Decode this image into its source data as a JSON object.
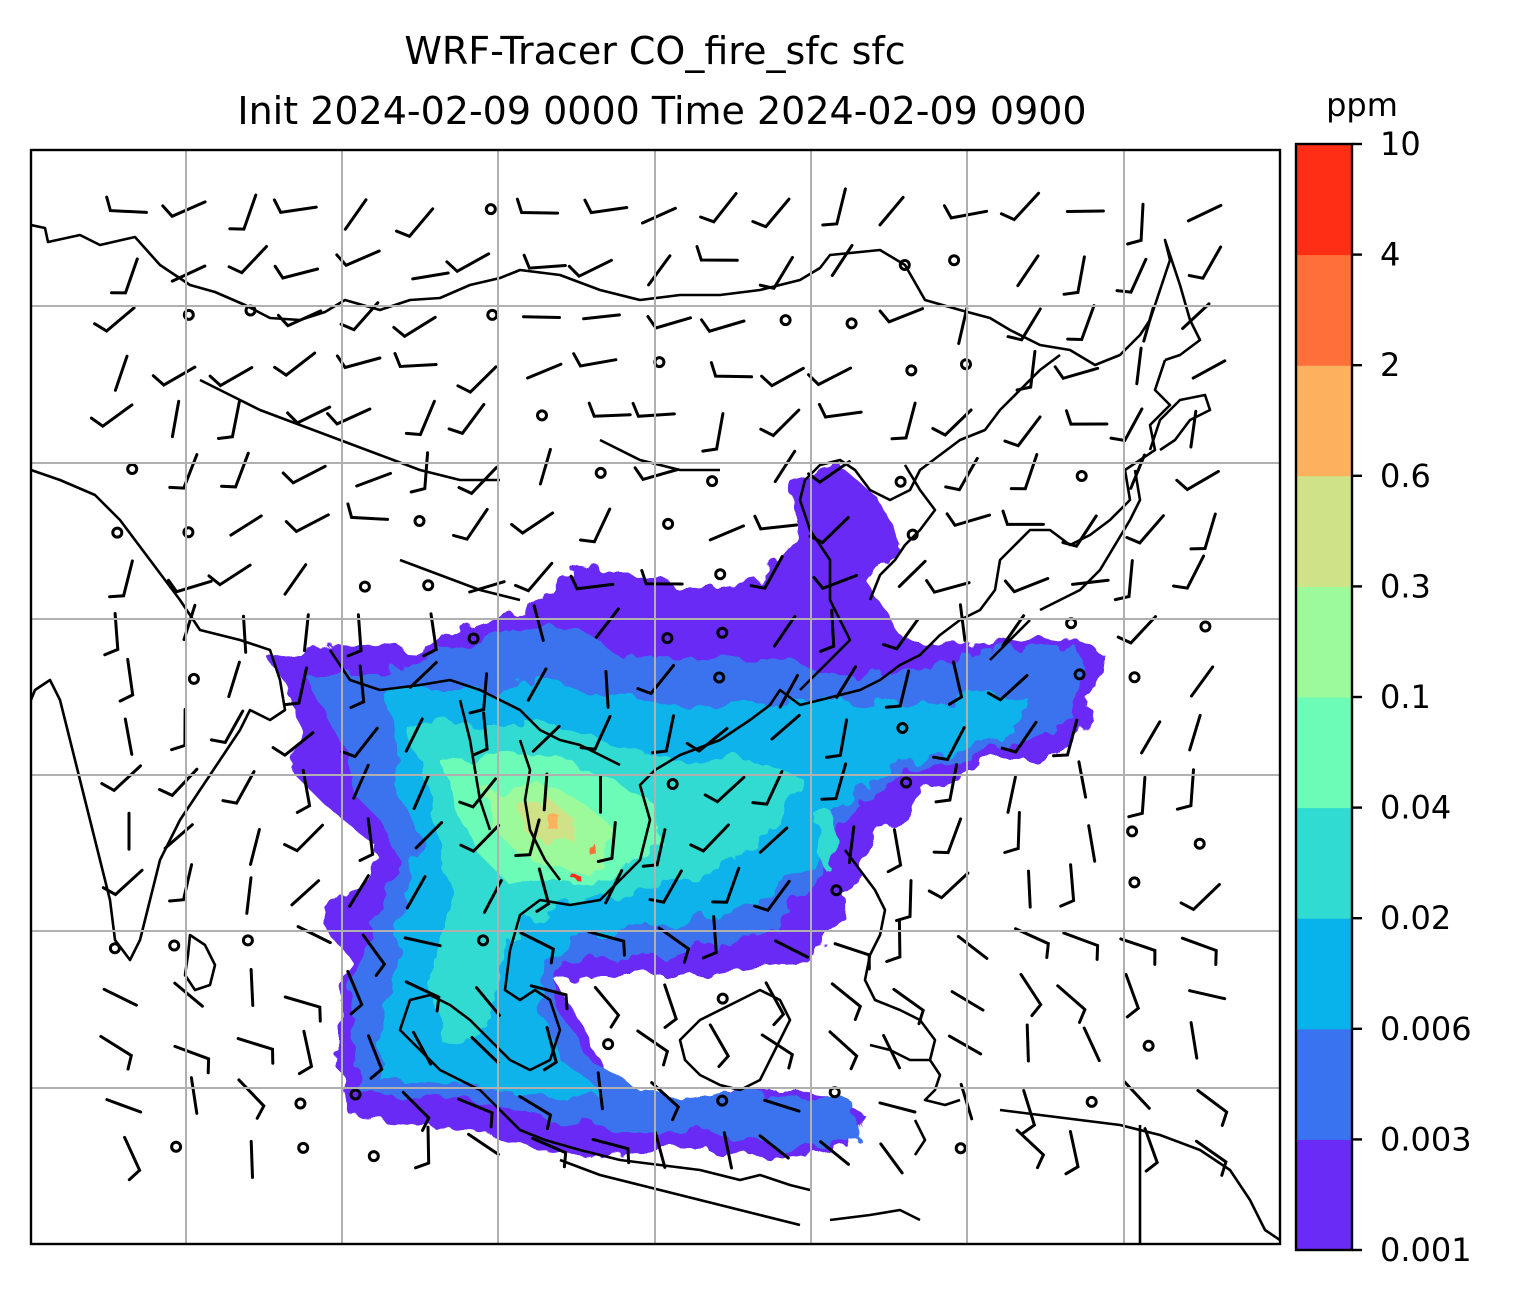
{
  "figure": {
    "title_line1": "WRF-Tracer CO_fire_sfc sfc",
    "title_line2": "Init 2024-02-09 0000 Time 2024-02-09 0900"
  },
  "colorbar": {
    "unit": "ppm",
    "tick_labels": [
      "0.001",
      "0.003",
      "0.006",
      "0.02",
      "0.04",
      "0.1",
      "0.3",
      "0.6",
      "2",
      "4",
      "10"
    ],
    "colors": [
      "#6a2bf6",
      "#3a73ef",
      "#07b3ea",
      "#30dbd1",
      "#6cfcb8",
      "#9cfa9a",
      "#cfe287",
      "#fdb15e",
      "#ff6f39",
      "#ff2e14"
    ]
  },
  "map": {
    "gridlines": "on",
    "coastlines": "on",
    "wind_barbs": "on"
  }
}
